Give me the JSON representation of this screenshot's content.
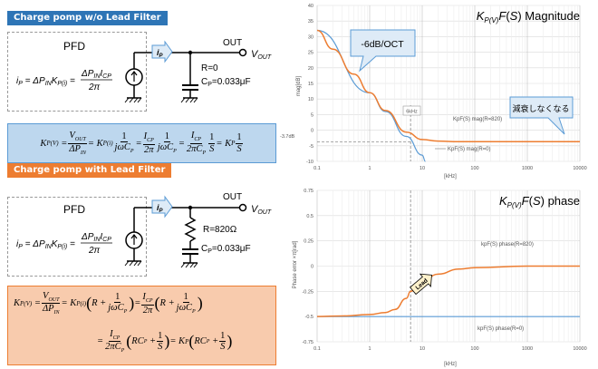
{
  "left": {
    "top_header": "Charge pomp w/o Lead Filter",
    "bottom_header": "Charge pomp with Lead Filter",
    "colors": {
      "blue_header": "#2E75B6",
      "orange_header": "#ED7D31",
      "blue_box": "#BDD7EE",
      "orange_box": "#F8CBAD"
    },
    "circuit1": {
      "pfd": "PFD",
      "ip_label": "i",
      "ip_sub": "P",
      "out": "OUT",
      "vout": "V",
      "vout_sub": "OUT",
      "r_label": "R=0",
      "c_label": "C",
      "c_sub": "P",
      "c_value": "=0.033μF"
    },
    "circuit2": {
      "pfd": "PFD",
      "ip_label": "i",
      "ip_sub": "P",
      "out": "OUT",
      "vout": "V",
      "vout_sub": "OUT",
      "r_label": "R=820Ω",
      "c_label": "C",
      "c_sub": "P",
      "c_value": "=0.033μF"
    }
  },
  "chart_data": [
    {
      "type": "line",
      "title": "K_P(V)F(S) Magnitude",
      "xlabel": "[kHz]",
      "ylabel": "mag[dB]",
      "xscale": "log",
      "xlim": [
        0.1,
        10000
      ],
      "ylim": [
        -10,
        40
      ],
      "x_ticks": [
        "0.1",
        "1",
        "10",
        "100",
        "1000",
        "10000"
      ],
      "y_ticks": [
        "40",
        "35",
        "30",
        "25",
        "20",
        "15",
        "10",
        "5",
        "0",
        "-5",
        "-10"
      ],
      "series": [
        {
          "name": "KpF(S) mag(R=820)",
          "color": "#ED7D31",
          "x": [
            0.1,
            0.2,
            0.5,
            1,
            2,
            5,
            10,
            20,
            50,
            100,
            1000,
            10000
          ],
          "y": [
            32,
            26,
            18,
            12,
            6.3,
            -0.6,
            -3.0,
            -3.5,
            -3.7,
            -3.7,
            -3.7,
            -3.7
          ]
        },
        {
          "name": "KpF(S) mag(R=0)",
          "color": "#5B9BD5",
          "x": [
            0.1,
            1,
            2,
            5,
            10,
            11.5
          ],
          "y": [
            32,
            12,
            6,
            -2,
            -8,
            -10
          ]
        }
      ],
      "annotations": [
        "-6dB/OCT",
        "減衰しなくなる",
        "6kHz",
        "-3.7dB"
      ]
    },
    {
      "type": "line",
      "title": "K_P(V)F(S) phase",
      "xlabel": "[kHz]",
      "ylabel": "Phase error ×π[rad]",
      "xscale": "log",
      "xlim": [
        0.1,
        10000
      ],
      "ylim": [
        -0.75,
        0.75
      ],
      "x_ticks": [
        "0.1",
        "1",
        "10",
        "100",
        "1000",
        "10000"
      ],
      "y_ticks": [
        "0.75",
        "0.5",
        "0.25",
        "0",
        "-0.25",
        "-0.5",
        "-0.75"
      ],
      "series": [
        {
          "name": "kpF(S) phase(R=820)",
          "color": "#ED7D31",
          "x": [
            0.1,
            0.3,
            1,
            2,
            3,
            5,
            6,
            10,
            20,
            50,
            100,
            1000,
            10000
          ],
          "y": [
            -0.499,
            -0.494,
            -0.48,
            -0.46,
            -0.43,
            -0.32,
            -0.25,
            -0.15,
            -0.08,
            -0.03,
            -0.015,
            0,
            0
          ]
        },
        {
          "name": "kpF(S) phase(R=0)",
          "color": "#5B9BD5",
          "x": [
            0.1,
            10000
          ],
          "y": [
            -0.5,
            -0.5
          ]
        }
      ],
      "annotations": [
        "Lead"
      ]
    }
  ]
}
